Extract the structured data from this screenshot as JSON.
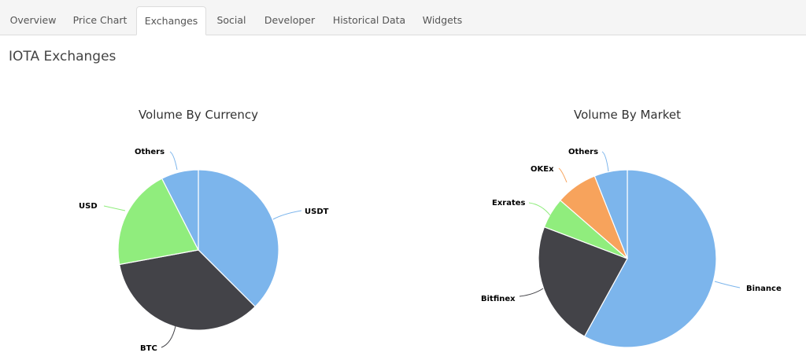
{
  "tabs": [
    {
      "label": "Overview",
      "active": false
    },
    {
      "label": "Price Chart",
      "active": false
    },
    {
      "label": "Exchanges",
      "active": true
    },
    {
      "label": "Social",
      "active": false
    },
    {
      "label": "Developer",
      "active": false
    },
    {
      "label": "Historical Data",
      "active": false
    },
    {
      "label": "Widgets",
      "active": false
    }
  ],
  "page": {
    "title": "IOTA Exchanges"
  },
  "colors": {
    "blue": "#7cb5ec",
    "dark": "#434348",
    "green": "#90ed7d",
    "orange": "#f7a35c"
  },
  "chart_data": [
    {
      "type": "pie",
      "title": "Volume By Currency",
      "categories": [
        "USDT",
        "BTC",
        "USD",
        "Others"
      ],
      "values": [
        37.5,
        34.6,
        20.4,
        7.5
      ],
      "colors": [
        "#7cb5ec",
        "#434348",
        "#90ed7d",
        "#7cb5ec"
      ],
      "legend": "none",
      "data_labels": true
    },
    {
      "type": "pie",
      "title": "Volume By Market",
      "categories": [
        "Binance",
        "Bitfinex",
        "Exrates",
        "OKEx",
        "Others"
      ],
      "values": [
        58.0,
        22.8,
        5.6,
        7.6,
        6.0
      ],
      "colors": [
        "#7cb5ec",
        "#434348",
        "#90ed7d",
        "#f7a35c",
        "#7cb5ec"
      ],
      "legend": "none",
      "data_labels": true
    }
  ]
}
